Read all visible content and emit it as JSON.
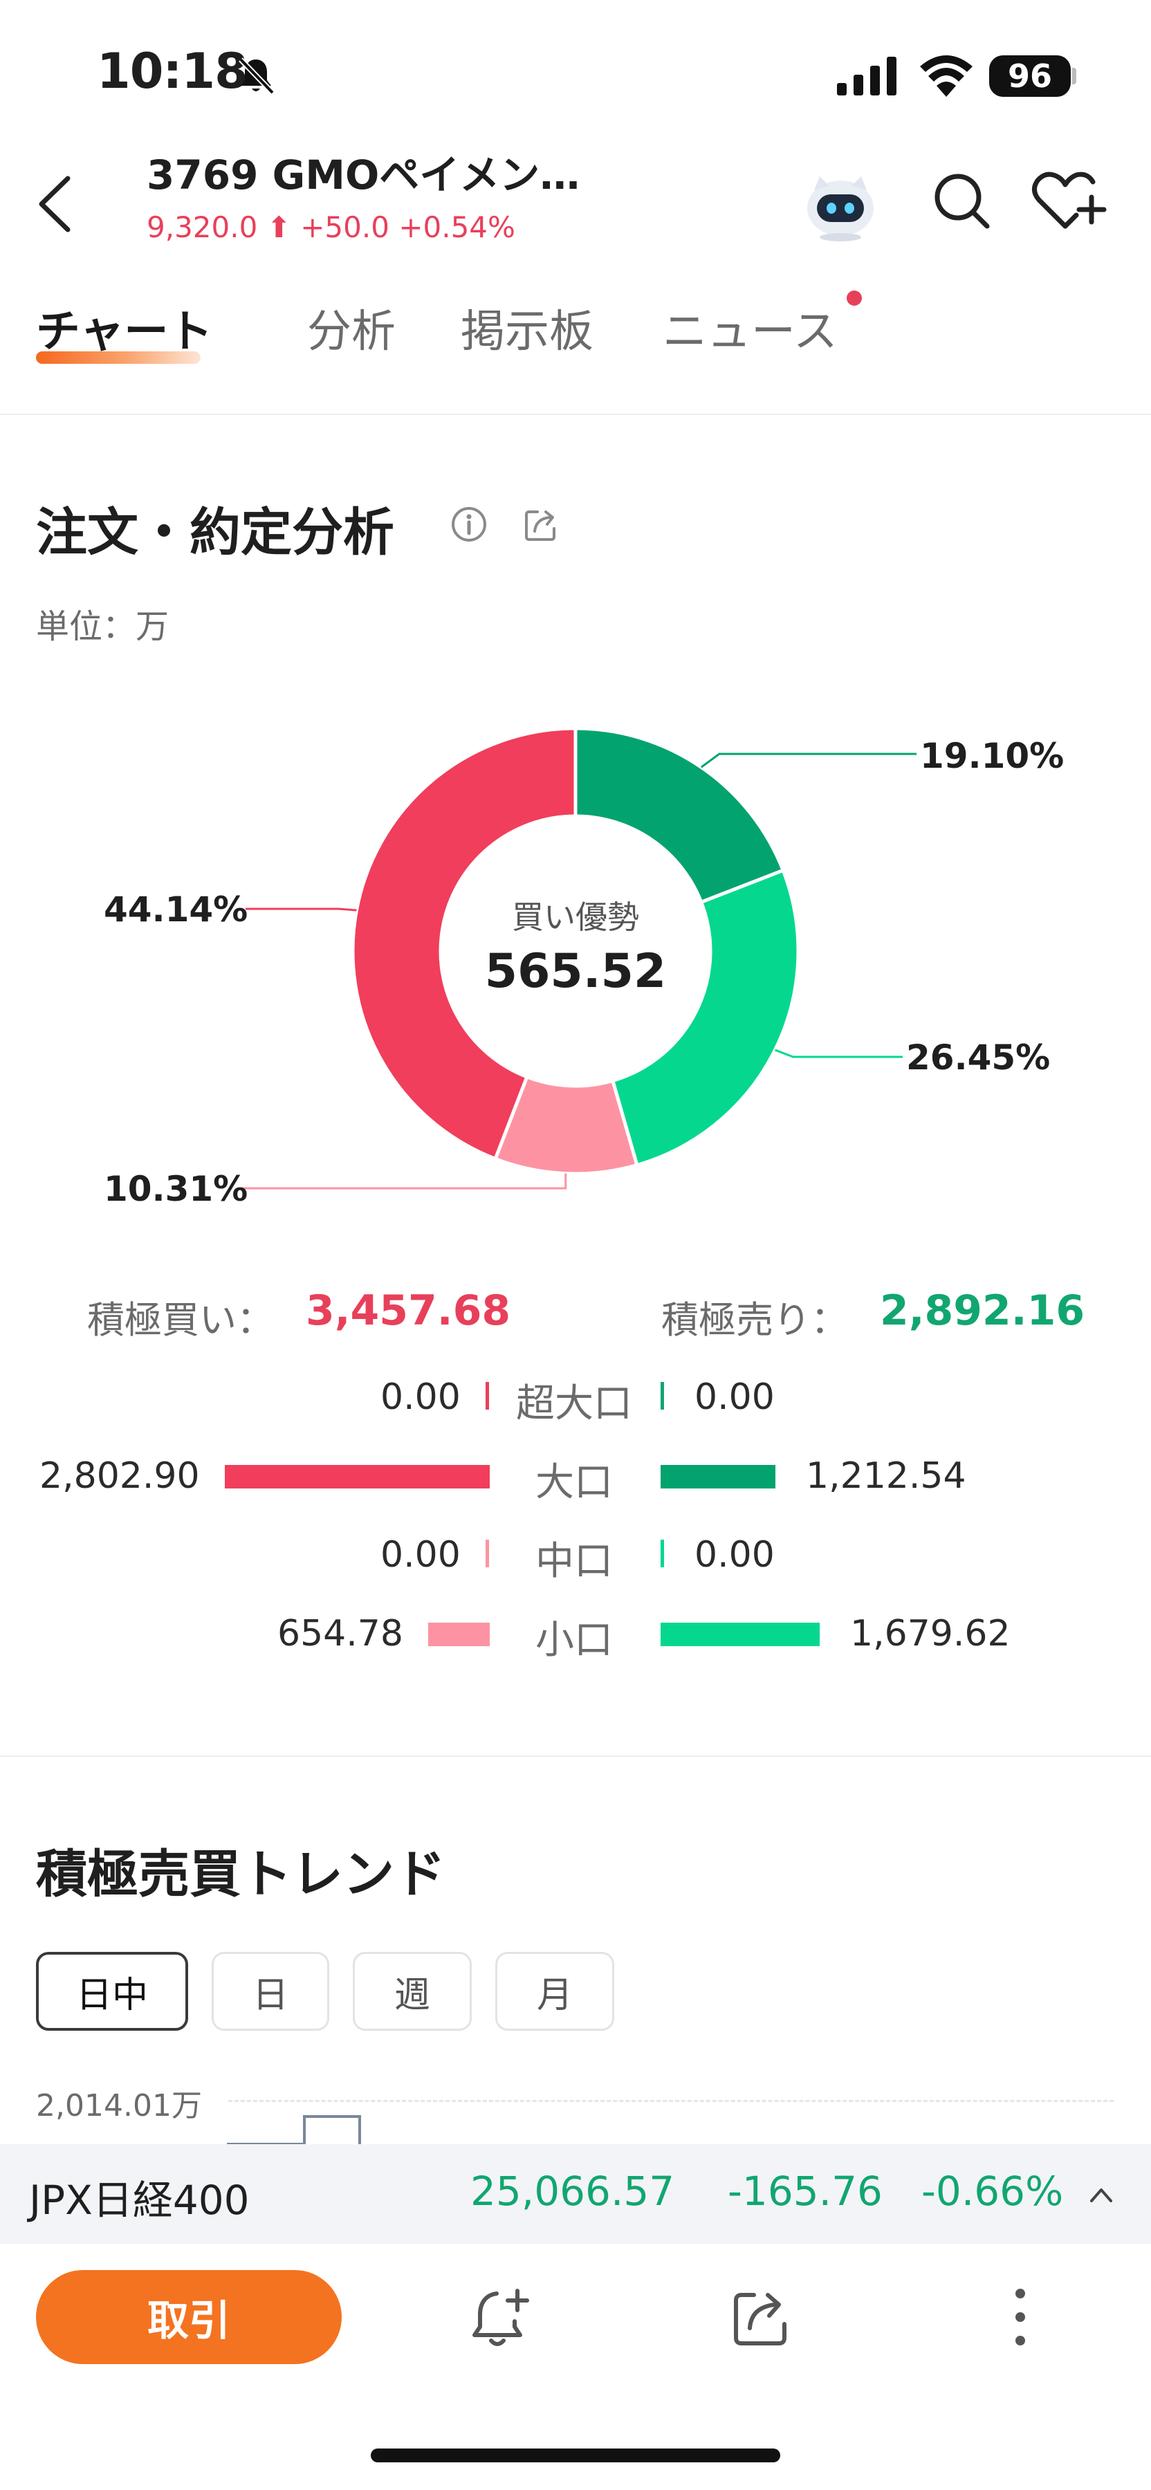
{
  "status_bar": {
    "time": "10:18",
    "battery": "96"
  },
  "header": {
    "title": "3769  GMOペイメン…",
    "price": "9,320.0",
    "change": "+50.0",
    "change_pct": "+0.54%"
  },
  "tabs": [
    {
      "label": "チャート"
    },
    {
      "label": "分析"
    },
    {
      "label": "掲示板"
    },
    {
      "label": "ニュース"
    }
  ],
  "order_analysis": {
    "title": "注文・約定分析",
    "unit": "単位：万",
    "center_label": "買い優勢",
    "center_value": "565.52",
    "slices": [
      {
        "label": "19.10%",
        "value": 19.1,
        "color": "#03a370"
      },
      {
        "label": "26.45%",
        "value": 26.45,
        "color": "#05d88e"
      },
      {
        "label": "10.31%",
        "value": 10.31,
        "color": "#fd93a2"
      },
      {
        "label": "44.14%",
        "value": 44.14,
        "color": "#f03e5c"
      }
    ],
    "buy_label": "積極買い：",
    "buy_total": "3,457.68",
    "sell_label": "積極売り：",
    "sell_total": "2,892.16",
    "rows": [
      {
        "label": "超大口",
        "buy": "0.00",
        "buy_value": 0.0,
        "sell": "0.00",
        "sell_value": 0.0
      },
      {
        "label": "大口",
        "buy": "2,802.90",
        "buy_value": 2802.9,
        "sell": "1,212.54",
        "sell_value": 1212.54
      },
      {
        "label": "中口",
        "buy": "0.00",
        "buy_value": 0.0,
        "sell": "0.00",
        "sell_value": 0.0
      },
      {
        "label": "小口",
        "buy": "654.78",
        "buy_value": 654.78,
        "sell": "1,679.62",
        "sell_value": 1679.62
      }
    ]
  },
  "trend": {
    "title": "積極売買トレンド",
    "periods": [
      {
        "label": "日中",
        "active": true
      },
      {
        "label": "日",
        "active": false
      },
      {
        "label": "週",
        "active": false
      },
      {
        "label": "月",
        "active": false
      }
    ],
    "axis_top": "2,014.01万"
  },
  "index_bar": {
    "name": "JPX日経400",
    "value": "25,066.57",
    "change": "-165.76",
    "change_pct": "-0.66%"
  },
  "bottom_bar": {
    "trade_label": "取引"
  },
  "colors": {
    "up_red": "#e8405a",
    "down_green": "#11a670",
    "accent_orange": "#f47320"
  },
  "icons": [
    "back-icon",
    "robot-icon",
    "search-icon",
    "heart-plus-icon",
    "info-icon",
    "share-icon",
    "bell-plus-icon",
    "more-icon"
  ]
}
